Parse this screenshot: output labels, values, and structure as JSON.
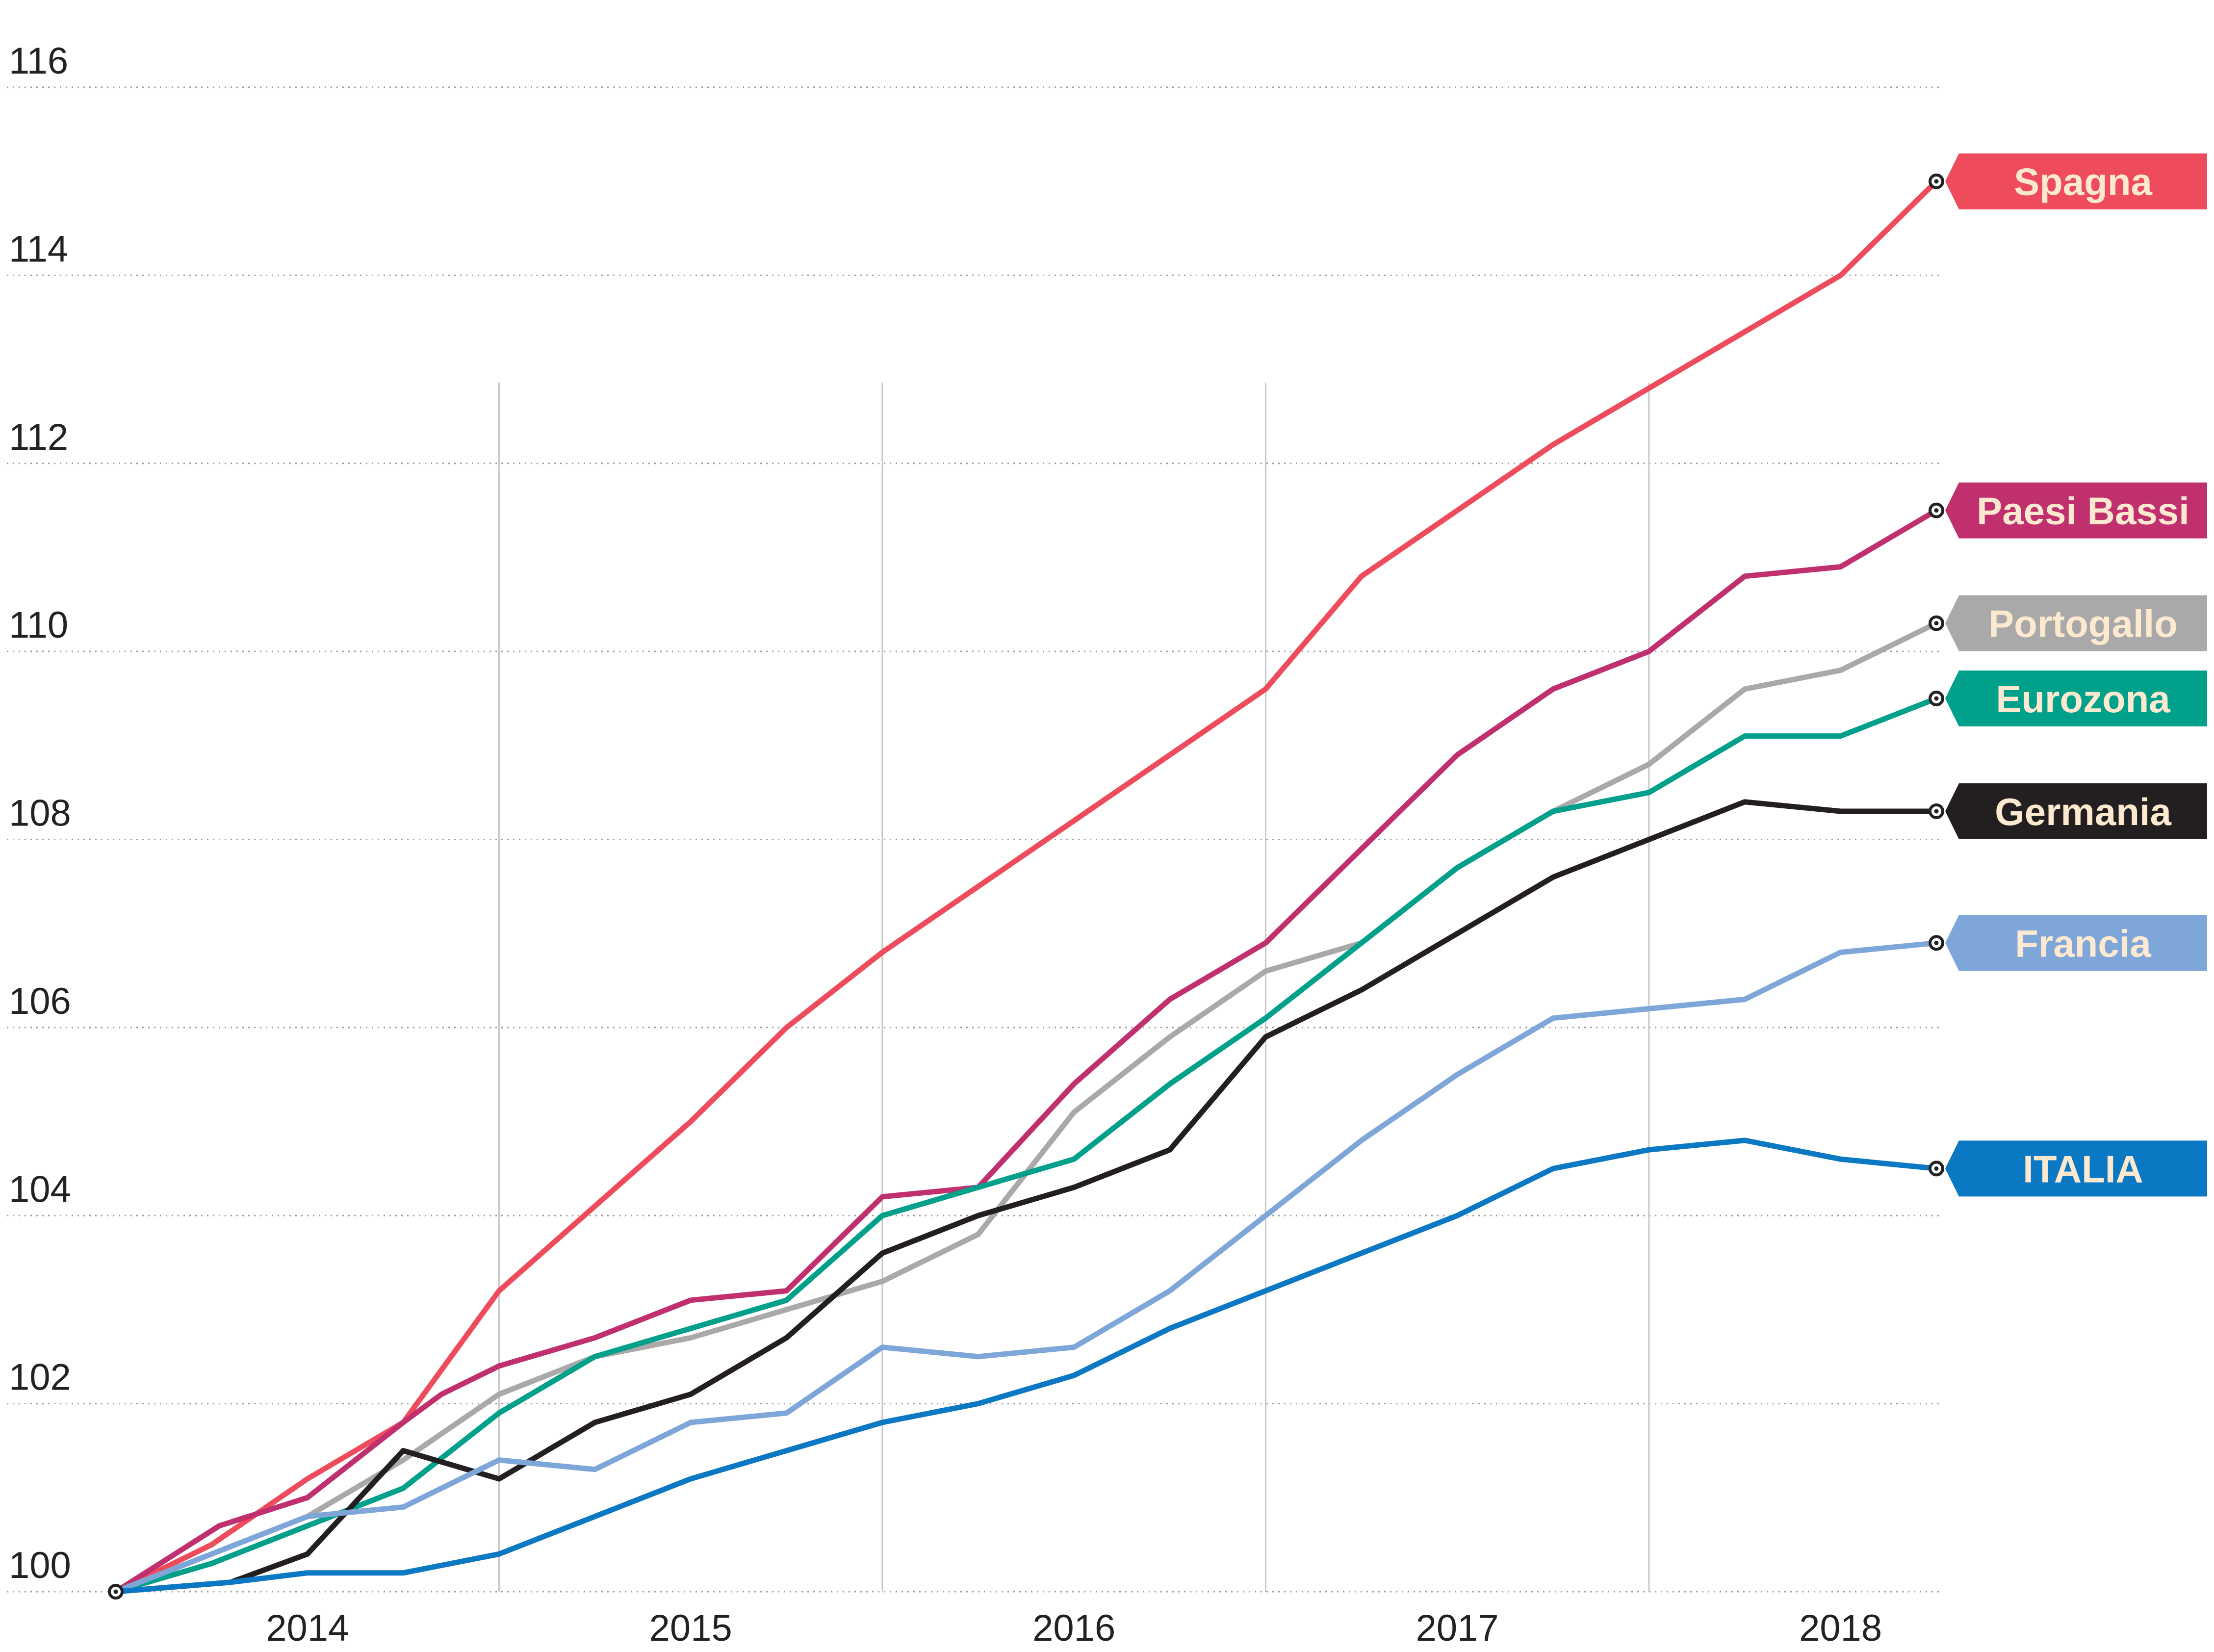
{
  "chart_data": {
    "type": "line",
    "title": "",
    "xlabel": "",
    "ylabel": "",
    "ylim": [
      100,
      116
    ],
    "xlim": [
      2013.5,
      2018.25
    ],
    "yticks": [
      "100",
      "102",
      "104",
      "106",
      "108",
      "110",
      "112",
      "114",
      "116"
    ],
    "xticks": [
      {
        "label": "2014",
        "x": 2014.0
      },
      {
        "label": "2015",
        "x": 2015.0
      },
      {
        "label": "2016",
        "x": 2016.0
      },
      {
        "label": "2017",
        "x": 2017.0
      },
      {
        "label": "2018",
        "x": 2018.0
      }
    ],
    "year_dividers": [
      2014.5,
      2015.5,
      2016.5,
      2017.5
    ],
    "grid": "horizontal-dotted",
    "legend": "right, labels at line ends",
    "series": [
      {
        "name": "Spagna",
        "color": "#ee4c5c",
        "text_color": "#fde9cf",
        "points": [
          [
            2013.5,
            100.0
          ],
          [
            2013.75,
            100.5
          ],
          [
            2014.0,
            101.2
          ],
          [
            2014.25,
            101.8
          ],
          [
            2014.5,
            103.2
          ],
          [
            2014.75,
            104.1
          ],
          [
            2015.0,
            105.0
          ],
          [
            2015.25,
            106.0
          ],
          [
            2015.5,
            106.8
          ],
          [
            2015.75,
            107.5
          ],
          [
            2016.0,
            108.2
          ],
          [
            2016.25,
            108.9
          ],
          [
            2016.5,
            109.6
          ],
          [
            2016.75,
            110.8
          ],
          [
            2017.0,
            111.5
          ],
          [
            2017.25,
            112.2
          ],
          [
            2017.5,
            112.8
          ],
          [
            2017.75,
            113.4
          ],
          [
            2018.0,
            114.0
          ],
          [
            2018.25,
            115.0
          ]
        ]
      },
      {
        "name": "Paesi Bassi",
        "color": "#c0306e",
        "text_color": "#fde9cf",
        "points": [
          [
            2013.5,
            100.0
          ],
          [
            2013.77,
            100.7
          ],
          [
            2014.0,
            101.0
          ],
          [
            2014.25,
            101.8
          ],
          [
            2014.35,
            102.1
          ],
          [
            2014.5,
            102.4
          ],
          [
            2014.75,
            102.7
          ],
          [
            2015.0,
            103.1
          ],
          [
            2015.25,
            103.2
          ],
          [
            2015.5,
            104.2
          ],
          [
            2015.75,
            104.3
          ],
          [
            2016.0,
            105.4
          ],
          [
            2016.25,
            106.3
          ],
          [
            2016.5,
            106.9
          ],
          [
            2016.75,
            107.9
          ],
          [
            2017.0,
            108.9
          ],
          [
            2017.25,
            109.6
          ],
          [
            2017.5,
            110.0
          ],
          [
            2017.75,
            110.8
          ],
          [
            2018.0,
            110.9
          ],
          [
            2018.25,
            111.5
          ]
        ]
      },
      {
        "name": "Portogallo",
        "color": "#a9a9a9",
        "text_color": "#fde9cf",
        "points": [
          [
            2013.5,
            100.0
          ],
          [
            2013.75,
            100.4
          ],
          [
            2014.0,
            100.8
          ],
          [
            2014.25,
            101.4
          ],
          [
            2014.5,
            102.1
          ],
          [
            2014.75,
            102.5
          ],
          [
            2015.0,
            102.7
          ],
          [
            2015.25,
            103.0
          ],
          [
            2015.5,
            103.3
          ],
          [
            2015.75,
            103.8
          ],
          [
            2016.0,
            105.1
          ],
          [
            2016.25,
            105.9
          ],
          [
            2016.5,
            106.6
          ],
          [
            2016.75,
            106.9
          ],
          [
            2017.0,
            107.7
          ],
          [
            2017.25,
            108.3
          ],
          [
            2017.5,
            108.8
          ],
          [
            2017.75,
            109.6
          ],
          [
            2018.0,
            109.8
          ],
          [
            2018.25,
            110.3
          ]
        ]
      },
      {
        "name": "Eurozona",
        "color": "#00a08a",
        "text_color": "#fde9cf",
        "points": [
          [
            2013.5,
            100.0
          ],
          [
            2013.75,
            100.3
          ],
          [
            2014.0,
            100.7
          ],
          [
            2014.25,
            101.1
          ],
          [
            2014.5,
            101.9
          ],
          [
            2014.75,
            102.5
          ],
          [
            2015.0,
            102.8
          ],
          [
            2015.25,
            103.1
          ],
          [
            2015.5,
            104.0
          ],
          [
            2015.75,
            104.3
          ],
          [
            2016.0,
            104.6
          ],
          [
            2016.25,
            105.4
          ],
          [
            2016.5,
            106.1
          ],
          [
            2016.75,
            106.9
          ],
          [
            2017.0,
            107.7
          ],
          [
            2017.25,
            108.3
          ],
          [
            2017.5,
            108.5
          ],
          [
            2017.75,
            109.1
          ],
          [
            2018.0,
            109.1
          ],
          [
            2018.25,
            109.5
          ]
        ]
      },
      {
        "name": "Germania",
        "color": "#231f20",
        "text_color": "#fde9cf",
        "points": [
          [
            2013.5,
            100.0
          ],
          [
            2013.8,
            100.1
          ],
          [
            2014.0,
            100.4
          ],
          [
            2014.25,
            101.5
          ],
          [
            2014.5,
            101.2
          ],
          [
            2014.75,
            101.8
          ],
          [
            2015.0,
            102.1
          ],
          [
            2015.25,
            102.7
          ],
          [
            2015.5,
            103.6
          ],
          [
            2015.75,
            104.0
          ],
          [
            2016.0,
            104.3
          ],
          [
            2016.25,
            104.7
          ],
          [
            2016.5,
            105.9
          ],
          [
            2016.75,
            106.4
          ],
          [
            2017.0,
            107.0
          ],
          [
            2017.25,
            107.6
          ],
          [
            2017.5,
            108.0
          ],
          [
            2017.75,
            108.4
          ],
          [
            2018.0,
            108.3
          ],
          [
            2018.25,
            108.3
          ]
        ]
      },
      {
        "name": "Francia",
        "color": "#7ea6d8",
        "text_color": "#fde9cf",
        "points": [
          [
            2013.5,
            100.0
          ],
          [
            2013.75,
            100.4
          ],
          [
            2014.0,
            100.8
          ],
          [
            2014.25,
            100.9
          ],
          [
            2014.5,
            101.4
          ],
          [
            2014.75,
            101.3
          ],
          [
            2015.0,
            101.8
          ],
          [
            2015.25,
            101.9
          ],
          [
            2015.5,
            102.6
          ],
          [
            2015.75,
            102.5
          ],
          [
            2016.0,
            102.6
          ],
          [
            2016.25,
            103.2
          ],
          [
            2016.5,
            104.0
          ],
          [
            2016.75,
            104.8
          ],
          [
            2017.0,
            105.5
          ],
          [
            2017.25,
            106.1
          ],
          [
            2017.5,
            106.2
          ],
          [
            2017.75,
            106.3
          ],
          [
            2018.0,
            106.8
          ],
          [
            2018.25,
            106.9
          ]
        ]
      },
      {
        "name": "ITALIA",
        "color": "#0a78c2",
        "text_color": "#fde9cf",
        "points": [
          [
            2013.5,
            100.0
          ],
          [
            2013.8,
            100.1
          ],
          [
            2014.0,
            100.2
          ],
          [
            2014.25,
            100.2
          ],
          [
            2014.5,
            100.4
          ],
          [
            2014.75,
            100.8
          ],
          [
            2015.0,
            101.2
          ],
          [
            2015.25,
            101.5
          ],
          [
            2015.5,
            101.8
          ],
          [
            2015.75,
            102.0
          ],
          [
            2016.0,
            102.3
          ],
          [
            2016.25,
            102.8
          ],
          [
            2016.5,
            103.2
          ],
          [
            2016.75,
            103.6
          ],
          [
            2017.0,
            104.0
          ],
          [
            2017.25,
            104.5
          ],
          [
            2017.5,
            104.7
          ],
          [
            2017.75,
            104.8
          ],
          [
            2018.0,
            104.6
          ],
          [
            2018.25,
            104.5
          ]
        ]
      }
    ]
  }
}
